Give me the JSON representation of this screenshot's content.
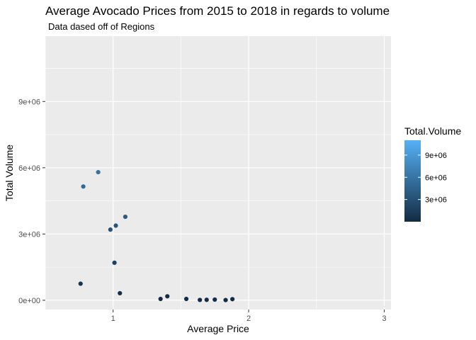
{
  "chart_data": {
    "type": "scatter",
    "title": "Average Avocado Prices from 2015 to 2018 in regards to volume",
    "subtitle": "Data dased off of Regions",
    "xlabel": "Average Price",
    "ylabel": "Total Volume",
    "xlim": [
      0.5,
      3.05
    ],
    "ylim": [
      -420000,
      11960000
    ],
    "x_ticks": [
      1,
      2,
      3
    ],
    "y_ticks": [
      0,
      3000000,
      6000000,
      9000000
    ],
    "x_tick_labels": [
      "1",
      "2",
      "3"
    ],
    "y_tick_labels": [
      "0e+00",
      "3e+06",
      "6e+06",
      "9e+06"
    ],
    "grid": true,
    "points": [
      {
        "x": 0.76,
        "y": 750000
      },
      {
        "x": 0.78,
        "y": 5150000
      },
      {
        "x": 0.89,
        "y": 5800000
      },
      {
        "x": 0.98,
        "y": 3200000
      },
      {
        "x": 1.01,
        "y": 1700000
      },
      {
        "x": 1.02,
        "y": 3380000
      },
      {
        "x": 1.05,
        "y": 320000
      },
      {
        "x": 1.09,
        "y": 3780000
      },
      {
        "x": 1.35,
        "y": 60000
      },
      {
        "x": 1.4,
        "y": 180000
      },
      {
        "x": 1.54,
        "y": 60000
      },
      {
        "x": 1.64,
        "y": 15000
      },
      {
        "x": 1.69,
        "y": 20000
      },
      {
        "x": 1.75,
        "y": 30000
      },
      {
        "x": 1.83,
        "y": 10000
      },
      {
        "x": 1.88,
        "y": 50000
      }
    ],
    "color_scale": {
      "title": "Total.Volume",
      "low_color": "#132B43",
      "high_color": "#56B1F7",
      "min": 0,
      "max": 11000000,
      "tick_values": [
        3000000,
        6000000,
        9000000
      ],
      "tick_labels": [
        "3e+06",
        "6e+06",
        "9e+06"
      ],
      "legend_position": "right"
    }
  }
}
